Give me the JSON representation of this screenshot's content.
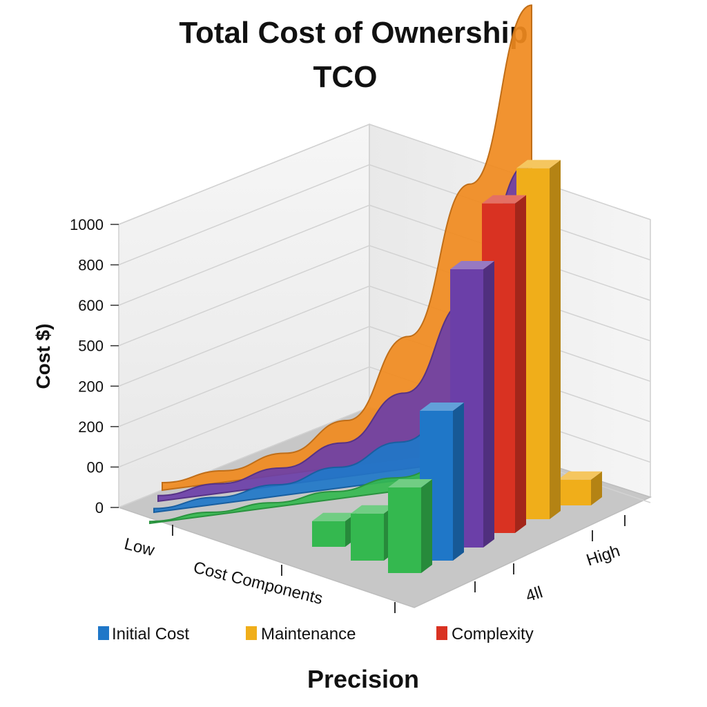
{
  "chart_data": {
    "type": "bar",
    "title": "Total Cost of Ownership",
    "subtitle": "TCO",
    "ylabel": "Cost $)",
    "xlabel": "Precision",
    "y_ticks": [
      "0",
      "00",
      "200",
      "200",
      "500",
      "600",
      "800",
      "1000"
    ],
    "x_axis_labels": [
      "Low",
      "Cost Components"
    ],
    "z_axis_labels": [
      "4ll",
      "High"
    ],
    "legend": [
      {
        "name": "Initial Cost",
        "color": "#1f77c8"
      },
      {
        "name": "Maintenance",
        "color": "#f0ae1a"
      },
      {
        "name": "Complexity",
        "color": "#d93222"
      }
    ],
    "bars": [
      {
        "color": "#34b84f",
        "value": 60
      },
      {
        "color": "#34b84f",
        "value": 110
      },
      {
        "color": "#34b84f",
        "value": 200
      },
      {
        "color": "#1f77c8",
        "value": 350
      },
      {
        "color": "#6b3fa8",
        "value": 650
      },
      {
        "color": "#d93222",
        "value": 770
      },
      {
        "color": "#f0ae1a",
        "value": 820
      },
      {
        "color": "#f0ae1a",
        "value": 60
      }
    ],
    "surfaces": [
      {
        "color": "#f08a1e",
        "values": [
          20,
          30,
          55,
          120,
          320,
          700,
          1150
        ]
      },
      {
        "color": "#6b3fa8",
        "values": [
          15,
          25,
          45,
          90,
          200,
          420,
          760
        ]
      },
      {
        "color": "#1f77c8",
        "values": [
          10,
          18,
          30,
          55,
          100,
          180,
          300
        ]
      },
      {
        "color": "#34b84f",
        "values": [
          5,
          8,
          12,
          20,
          35,
          60,
          90
        ]
      }
    ],
    "grid": true,
    "legend_position": "bottom"
  }
}
